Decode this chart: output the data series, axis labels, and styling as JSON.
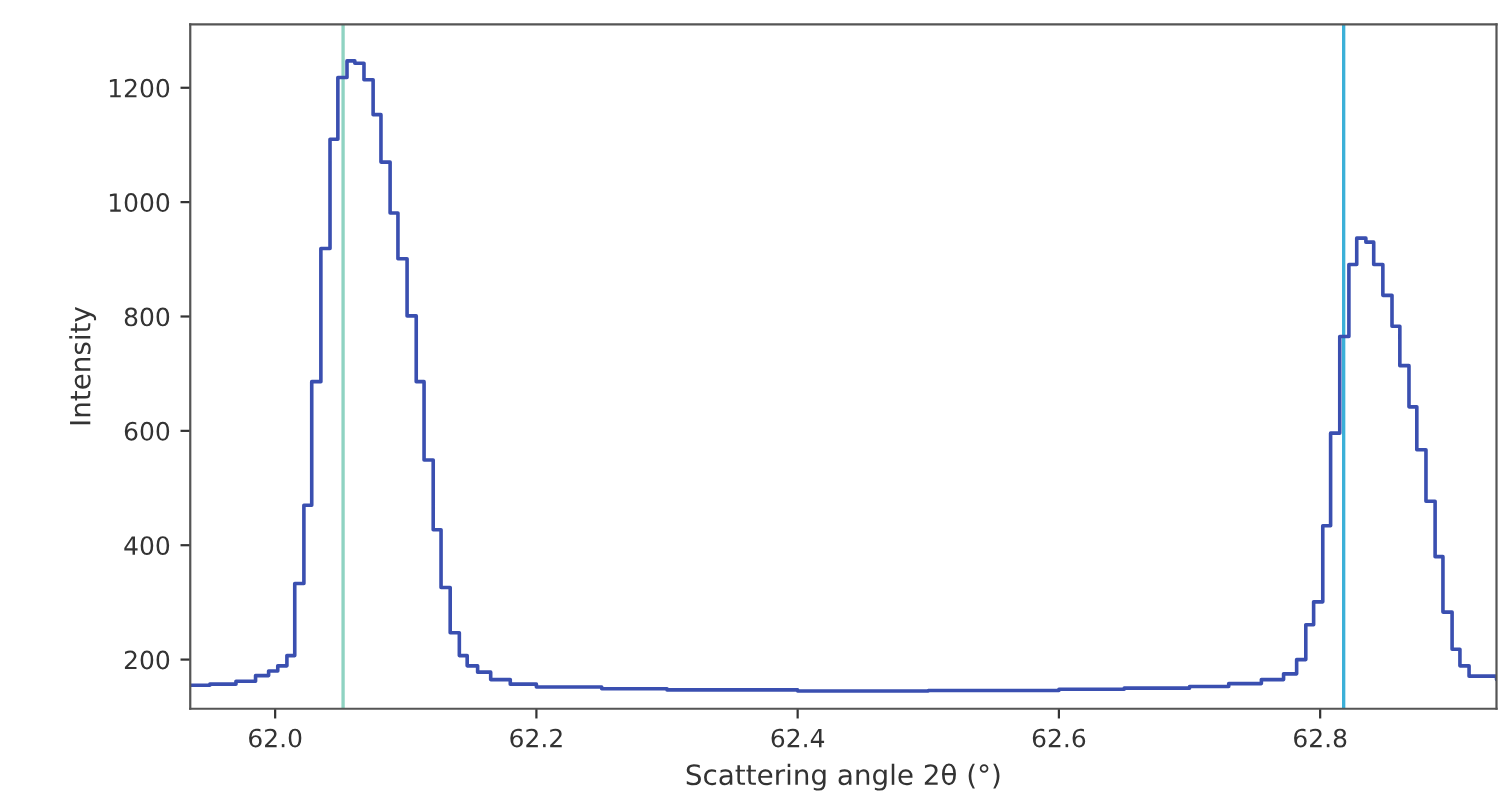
{
  "chart_data": {
    "type": "step",
    "xlabel": "Scattering angle 2θ (°)",
    "ylabel": "Intensity",
    "x": [
      61.935,
      61.95,
      61.97,
      61.985,
      61.995,
      62.002,
      62.009,
      62.015,
      62.022,
      62.028,
      62.035,
      62.042,
      62.048,
      62.055,
      62.061,
      62.068,
      62.075,
      62.081,
      62.088,
      62.094,
      62.101,
      62.108,
      62.114,
      62.121,
      62.127,
      62.134,
      62.141,
      62.147,
      62.155,
      62.165,
      62.18,
      62.2,
      62.25,
      62.3,
      62.4,
      62.5,
      62.6,
      62.65,
      62.7,
      62.73,
      62.755,
      62.772,
      62.782,
      62.789,
      62.795,
      62.802,
      62.808,
      62.815,
      62.822,
      62.828,
      62.835,
      62.841,
      62.848,
      62.855,
      62.861,
      62.868,
      62.874,
      62.881,
      62.888,
      62.894,
      62.901,
      62.907,
      62.914,
      62.935
    ],
    "series": [
      {
        "color": "#3a4fb0",
        "values": [
          155,
          157,
          162,
          172,
          180,
          189,
          207,
          333,
          470,
          686,
          919,
          1110,
          1218,
          1247,
          1243,
          1214,
          1153,
          1070,
          981,
          901,
          801,
          686,
          549,
          427,
          326,
          247,
          207,
          189,
          178,
          165,
          157,
          152,
          149,
          147,
          145,
          146,
          148,
          150,
          153,
          158,
          165,
          175,
          200,
          261,
          301,
          434,
          596,
          765,
          891,
          937,
          930,
          891,
          837,
          783,
          714,
          642,
          567,
          477,
          380,
          283,
          218,
          189,
          171,
          165
        ]
      }
    ],
    "xlim": [
      61.935,
      62.935
    ],
    "ylim": [
      114,
      1311
    ],
    "xticks": [
      {
        "value": 62.0,
        "label": "62.0"
      },
      {
        "value": 62.2,
        "label": "62.2"
      },
      {
        "value": 62.4,
        "label": "62.4"
      },
      {
        "value": 62.6,
        "label": "62.6"
      },
      {
        "value": 62.8,
        "label": "62.8"
      }
    ],
    "yticks": [
      200,
      400,
      600,
      800,
      1000,
      1200
    ],
    "ref_lines": [
      {
        "axis": "x",
        "value": 62.052,
        "color": "#8fd3c2"
      },
      {
        "axis": "x",
        "value": 62.818,
        "color": "#3bb0d8"
      }
    ],
    "grid": false
  }
}
